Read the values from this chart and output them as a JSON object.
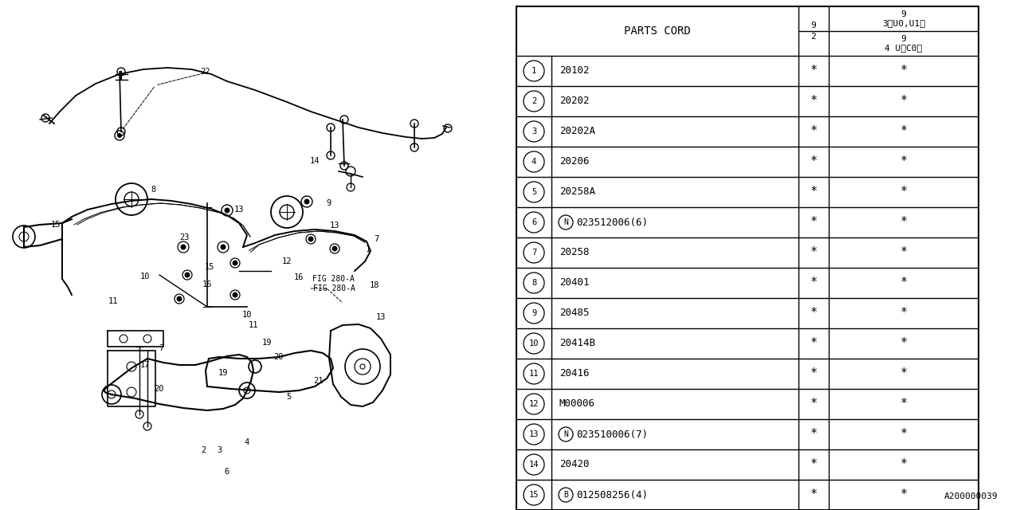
{
  "bg_color": "#ffffff",
  "watermark": "A200000039",
  "table": {
    "header_col1": "PARTS CORD",
    "col2_label": "9\n2",
    "col3_top_line1": "9",
    "col3_top_line2": "3〈U0,U1〉",
    "col3_bot_line1": "9",
    "col3_bot_line2": "4 U〈C0〉",
    "rows": [
      {
        "num": "1",
        "prefix": "",
        "code": "20102",
        "star1": "*",
        "star2": "*"
      },
      {
        "num": "2",
        "prefix": "",
        "code": "20202",
        "star1": "*",
        "star2": "*"
      },
      {
        "num": "3",
        "prefix": "",
        "code": "20202A",
        "star1": "*",
        "star2": "*"
      },
      {
        "num": "4",
        "prefix": "",
        "code": "20206",
        "star1": "*",
        "star2": "*"
      },
      {
        "num": "5",
        "prefix": "",
        "code": "20258A",
        "star1": "*",
        "star2": "*"
      },
      {
        "num": "6",
        "prefix": "N",
        "code": "023512006(6)",
        "star1": "*",
        "star2": "*"
      },
      {
        "num": "7",
        "prefix": "",
        "code": "20258",
        "star1": "*",
        "star2": "*"
      },
      {
        "num": "8",
        "prefix": "",
        "code": "20401",
        "star1": "*",
        "star2": "*"
      },
      {
        "num": "9",
        "prefix": "",
        "code": "20485",
        "star1": "*",
        "star2": "*"
      },
      {
        "num": "10",
        "prefix": "",
        "code": "20414B",
        "star1": "*",
        "star2": "*"
      },
      {
        "num": "11",
        "prefix": "",
        "code": "20416",
        "star1": "*",
        "star2": "*"
      },
      {
        "num": "12",
        "prefix": "",
        "code": "M00006",
        "star1": "*",
        "star2": "*"
      },
      {
        "num": "13",
        "prefix": "N",
        "code": "023510006(7)",
        "star1": "*",
        "star2": "*"
      },
      {
        "num": "14",
        "prefix": "",
        "code": "20420",
        "star1": "*",
        "star2": "*"
      },
      {
        "num": "15",
        "prefix": "B",
        "code": "012508256(4)",
        "star1": "*",
        "star2": "*"
      }
    ]
  }
}
